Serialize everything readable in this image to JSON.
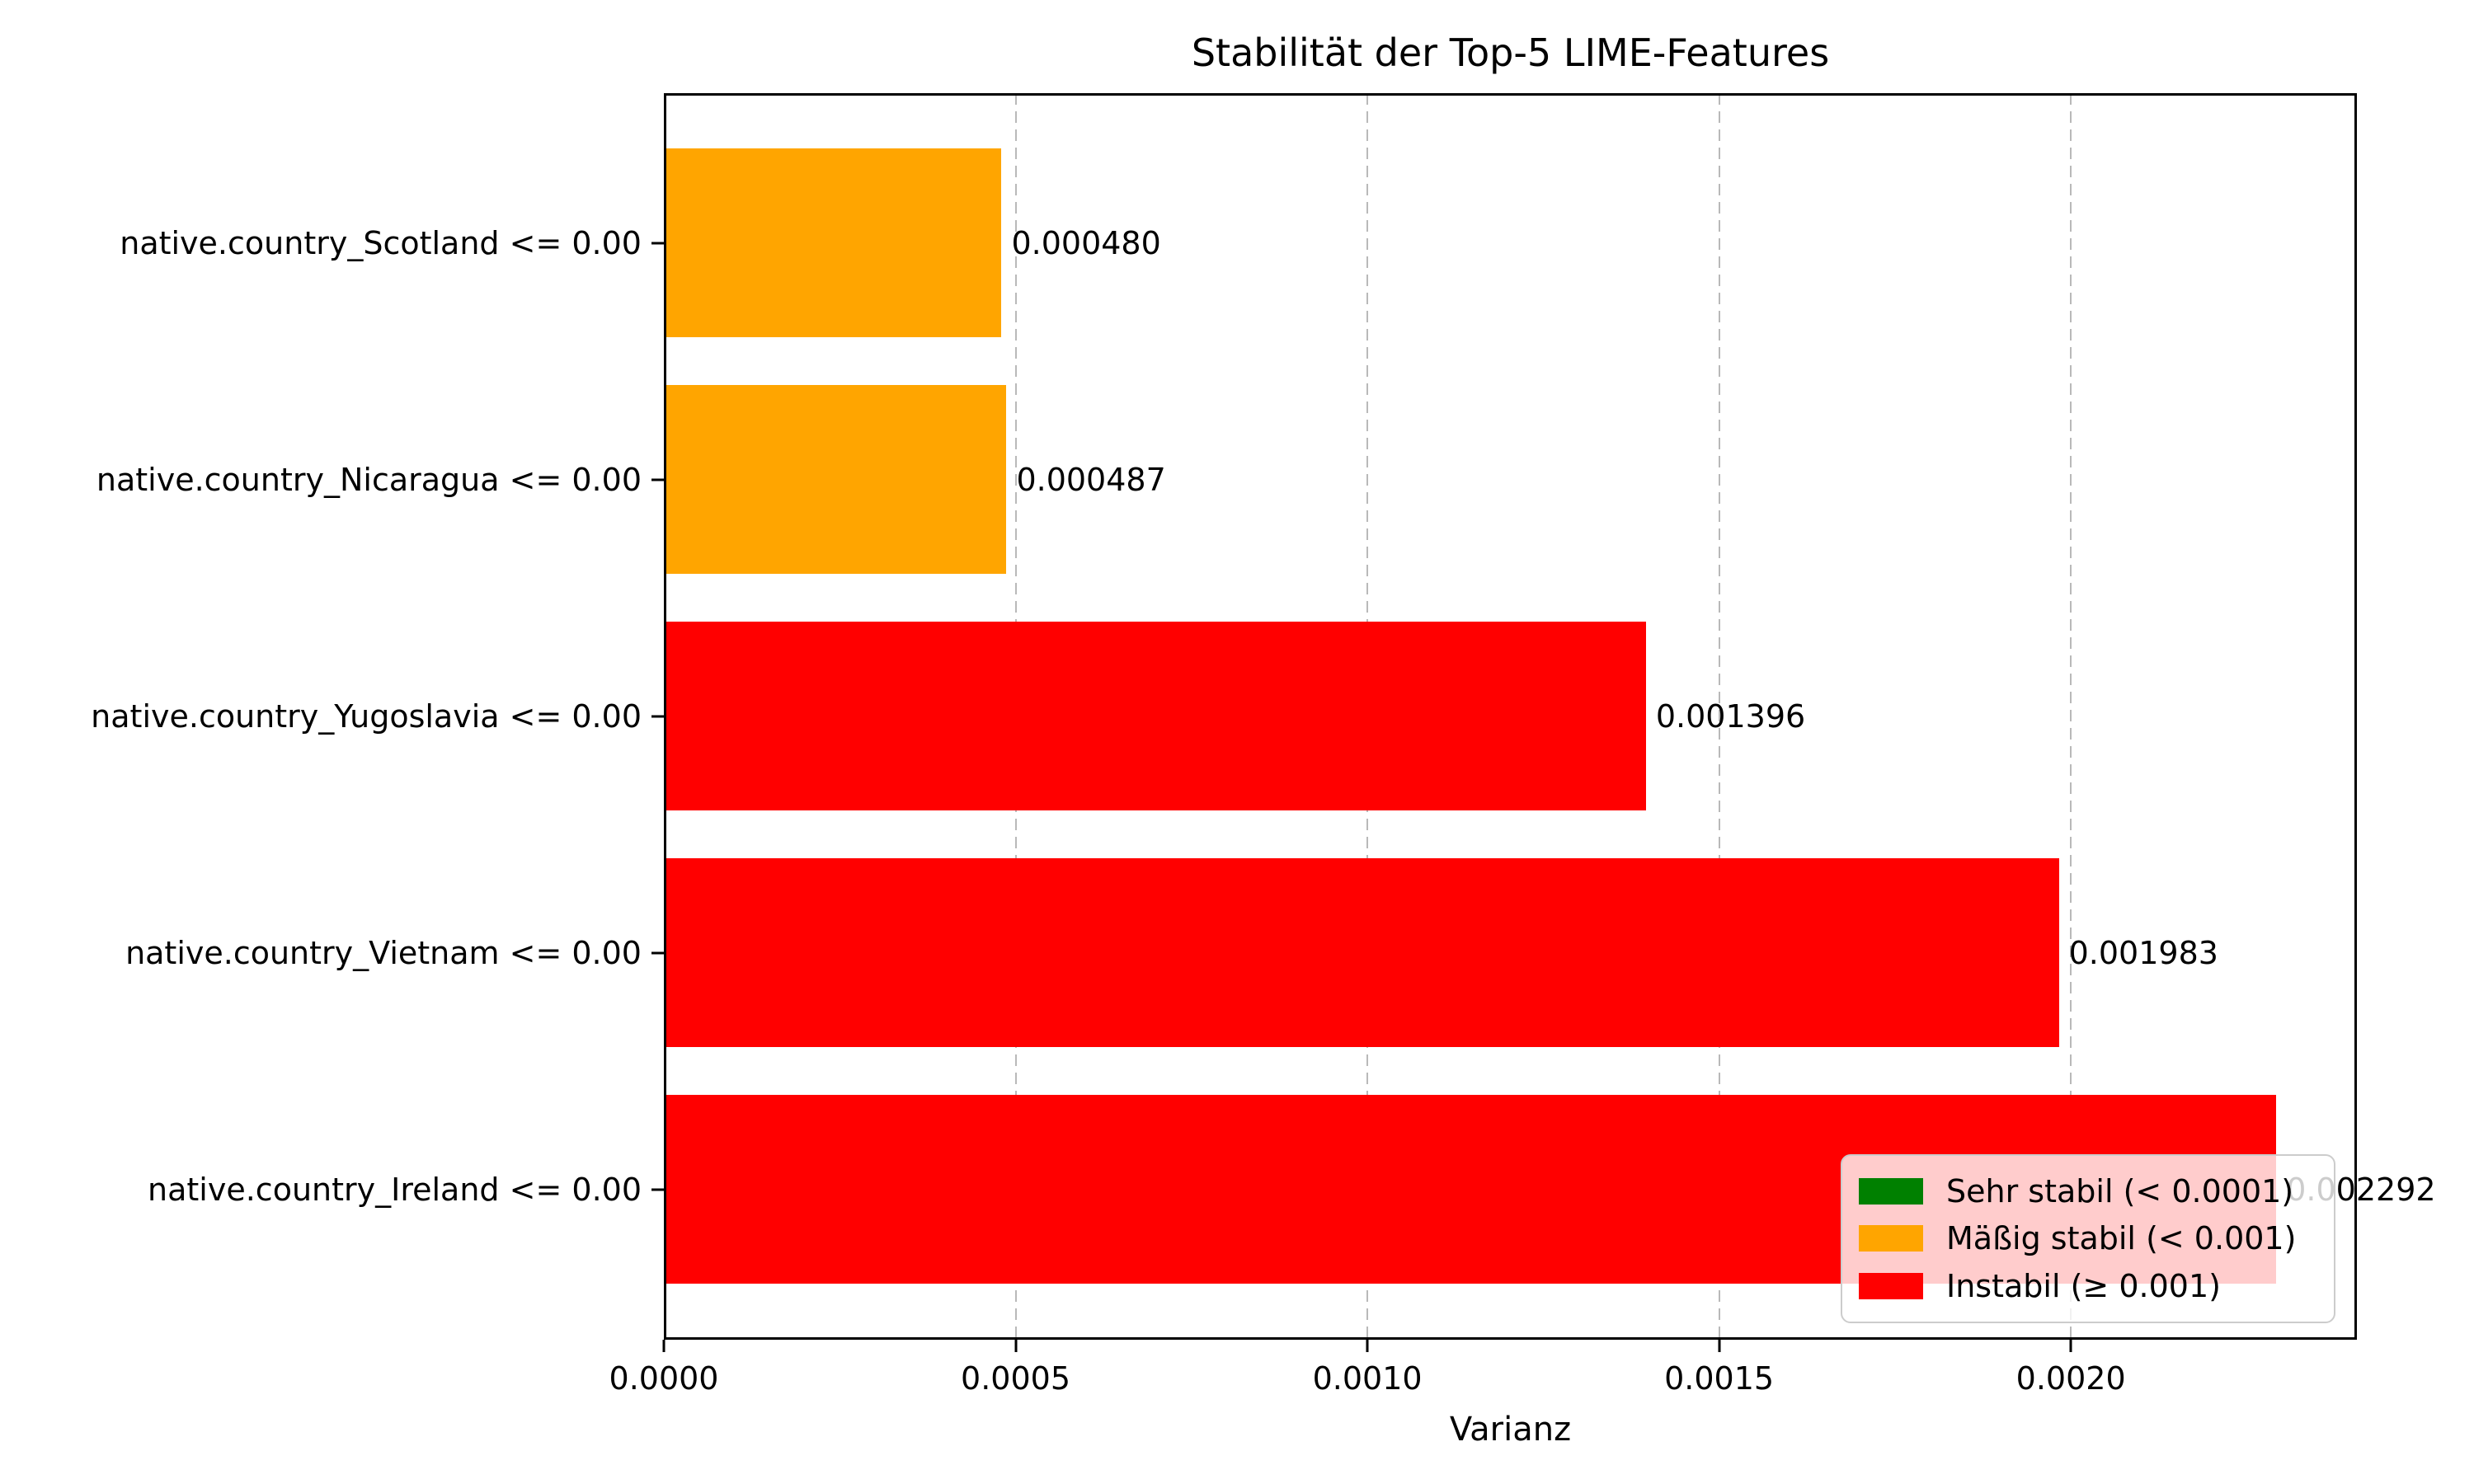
{
  "chart_data": {
    "type": "bar",
    "orientation": "horizontal",
    "title": "Stabilität der Top-5 LIME-Features",
    "xlabel": "Varianz",
    "categories": [
      "native.country_Scotland <= 0.00",
      "native.country_Nicaragua <= 0.00",
      "native.country_Yugoslavia <= 0.00",
      "native.country_Vietnam <= 0.00",
      "native.country_Ireland <= 0.00"
    ],
    "values": [
      0.00048,
      0.000487,
      0.001396,
      0.001983,
      0.002292
    ],
    "value_labels": [
      "0.000480",
      "0.000487",
      "0.001396",
      "0.001983",
      "0.002292"
    ],
    "bar_colors": [
      "#FFA500",
      "#FFA500",
      "#FF0000",
      "#FF0000",
      "#FF0000"
    ],
    "xlim": [
      0,
      0.0024066
    ],
    "xticks": [
      0.0,
      0.0005,
      0.001,
      0.0015,
      0.002
    ],
    "xtick_labels": [
      "0.0000",
      "0.0005",
      "0.0010",
      "0.0015",
      "0.0020"
    ],
    "grid": {
      "axis": "x",
      "style": "dashed",
      "color": "#b9b9b9",
      "behind_bars": true
    },
    "legend": {
      "position": "lower right",
      "entries": [
        {
          "label": "Sehr stabil (< 0.0001)",
          "color": "#008000"
        },
        {
          "label": "Mäßig stabil (< 0.001)",
          "color": "#FFA500"
        },
        {
          "label": "Instabil (≥ 0.001)",
          "color": "#FF0000"
        }
      ]
    }
  }
}
